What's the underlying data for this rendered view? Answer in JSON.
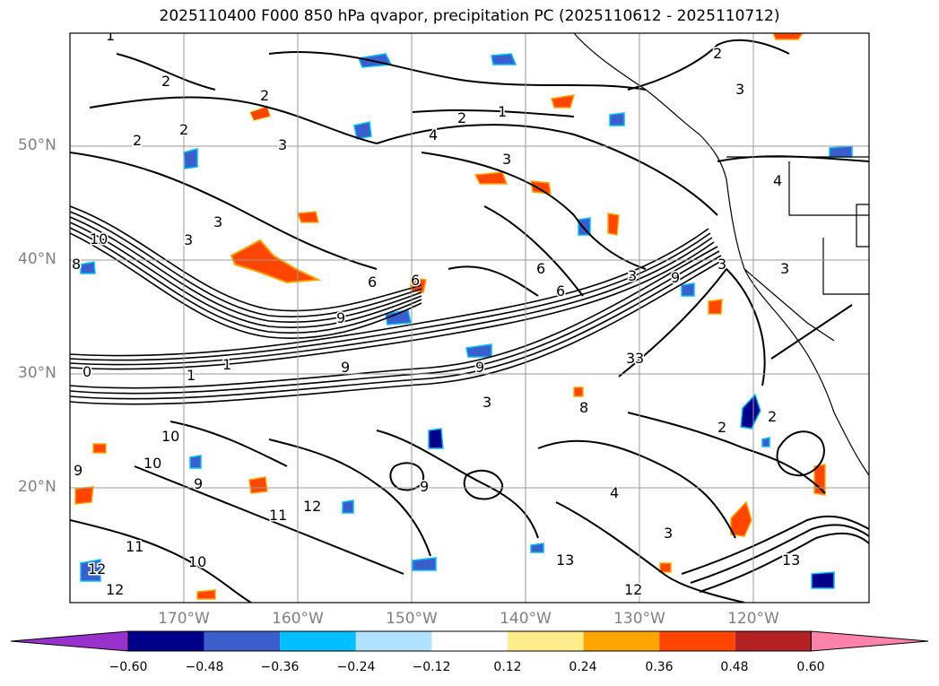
{
  "title": "2025110400 F000 850 hPa qvapor, precipitation PC (2025110612 - 2025110712)",
  "lat_labels": [
    "50°N",
    "40°N",
    "30°N",
    "20°N"
  ],
  "lon_labels": [
    "170°W",
    "160°W",
    "150°W",
    "140°W",
    "130°W",
    "120°W"
  ],
  "colorbar": {
    "colors": [
      "#9932cc",
      "#00008b",
      "#3a5fcd",
      "#00bfff",
      "#b0e2ff",
      "#ffffff",
      "#ffec8b",
      "#ffa500",
      "#ff4500",
      "#b22222",
      "#ff82ab"
    ],
    "ticks": [
      "−0.60",
      "−0.48",
      "−0.36",
      "−0.24",
      "−0.12",
      "0.12",
      "0.24",
      "0.36",
      "0.48",
      "0.60"
    ]
  },
  "contour_labels": [
    "1",
    "2",
    "2",
    "2",
    "2",
    "3",
    "4",
    "2",
    "3",
    "1",
    "2",
    "3",
    "4",
    "3",
    "6",
    "3",
    "3",
    "10",
    "8",
    "6",
    "3",
    "6",
    "9",
    "6",
    "9",
    "3",
    "3",
    "1",
    "9",
    "0",
    "1",
    "9",
    "8",
    "3",
    "3",
    "10",
    "10",
    "9",
    "9",
    "9",
    "11",
    "12",
    "13",
    "12",
    "11",
    "12",
    "13",
    "10",
    "3",
    "2",
    "2",
    "12",
    "4"
  ]
}
